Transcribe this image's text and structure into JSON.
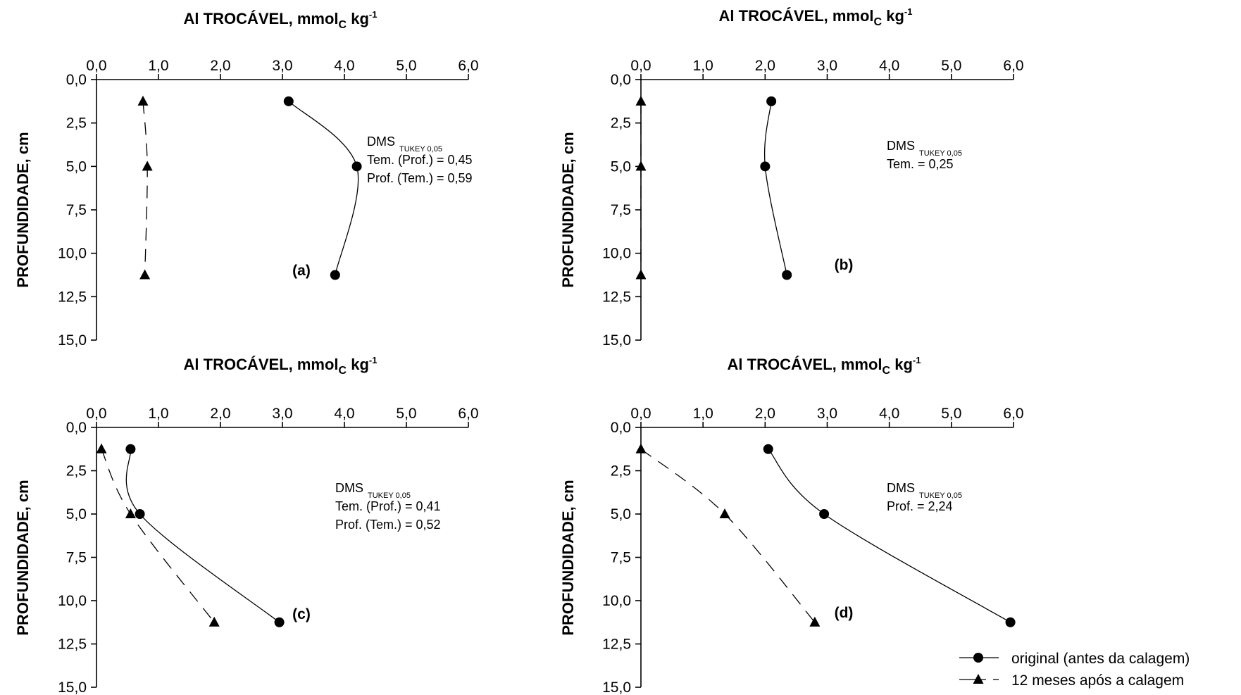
{
  "chart_data": [
    {
      "type": "line",
      "panel_label": "(a)",
      "title": {
        "main": "Al TROCÁVEL, mmol",
        "sub": "C",
        "unit": " kg",
        "sup": "-1"
      },
      "xlabel": "Al TROCÁVEL, mmolC kg-1",
      "ylabel": "PROFUNDIDADE, cm",
      "x_axis_position": "top",
      "y_axis_inverted": true,
      "xlim": [
        0,
        6
      ],
      "ylim": [
        0,
        15
      ],
      "x_ticks": [
        "0,0",
        "1,0",
        "2,0",
        "3,0",
        "4,0",
        "5,0",
        "6,0"
      ],
      "y_ticks": [
        "0,0",
        "2,5",
        "5,0",
        "7,5",
        "10,0",
        "12,5",
        "15,0"
      ],
      "series": [
        {
          "name": "original (antes da calagem)",
          "marker": "circle",
          "line": "solid",
          "x": [
            3.1,
            4.2,
            3.85
          ],
          "y": [
            1.25,
            5.0,
            11.25
          ]
        },
        {
          "name": "12 meses após a calagem",
          "marker": "triangle",
          "line": "dashed",
          "x": [
            0.75,
            0.82,
            0.78
          ],
          "y": [
            1.25,
            5.0,
            11.25
          ]
        }
      ],
      "annotation": {
        "heading": "DMS",
        "heading_sub": "TUKEY 0,05",
        "lines": [
          "Tem. (Prof.) = 0,45",
          "Prof. (Tem.) = 0,59"
        ]
      }
    },
    {
      "type": "line",
      "panel_label": "(b)",
      "title": {
        "main": "Al TROCÁVEL, mmol",
        "sub": "C",
        "unit": " kg",
        "sup": "-1"
      },
      "xlabel": "Al TROCÁVEL, mmolC kg-1",
      "ylabel": "PROFUNDIDADE, cm",
      "x_axis_position": "top",
      "y_axis_inverted": true,
      "xlim": [
        0,
        6
      ],
      "ylim": [
        0,
        15
      ],
      "x_ticks": [
        "0,0",
        "1,0",
        "2,0",
        "3,0",
        "4,0",
        "5,0",
        "6,0"
      ],
      "y_ticks": [
        "0,0",
        "2,5",
        "5,0",
        "7,5",
        "10,0",
        "12,5",
        "15,0"
      ],
      "series": [
        {
          "name": "original (antes da calagem)",
          "marker": "circle",
          "line": "solid",
          "x": [
            2.1,
            2.0,
            2.35
          ],
          "y": [
            1.25,
            5.0,
            11.25
          ]
        },
        {
          "name": "12 meses após a calagem",
          "marker": "triangle",
          "line": "dashed",
          "x": [
            0.0,
            0.0,
            0.0
          ],
          "y": [
            1.25,
            5.0,
            11.25
          ]
        }
      ],
      "annotation": {
        "heading": "DMS",
        "heading_sub": "TUKEY 0,05",
        "lines": [
          "Tem. = 0,25"
        ]
      }
    },
    {
      "type": "line",
      "panel_label": "(c)",
      "title": {
        "main": "Al TROCÁVEL, mmol",
        "sub": "C",
        "unit": " kg",
        "sup": "-1"
      },
      "xlabel": "Al TROCÁVEL, mmolC kg-1",
      "ylabel": "PROFUNDIDADE, cm",
      "x_axis_position": "top",
      "y_axis_inverted": true,
      "xlim": [
        0,
        6
      ],
      "ylim": [
        0,
        15
      ],
      "x_ticks": [
        "0,0",
        "1,0",
        "2,0",
        "3,0",
        "4,0",
        "5,0",
        "6,0"
      ],
      "y_ticks": [
        "0,0",
        "2,5",
        "5,0",
        "7,5",
        "10,0",
        "12,5",
        "15,0"
      ],
      "series": [
        {
          "name": "original (antes da calagem)",
          "marker": "circle",
          "line": "solid",
          "x": [
            0.55,
            0.7,
            2.95
          ],
          "y": [
            1.25,
            5.0,
            11.25
          ]
        },
        {
          "name": "12 meses após a calagem",
          "marker": "triangle",
          "line": "dashed",
          "x": [
            0.08,
            0.55,
            1.9
          ],
          "y": [
            1.25,
            5.0,
            11.25
          ]
        }
      ],
      "annotation": {
        "heading": "DMS",
        "heading_sub": "TUKEY 0,05",
        "lines": [
          "Tem. (Prof.) = 0,41",
          "Prof. (Tem.) = 0,52"
        ]
      }
    },
    {
      "type": "line",
      "panel_label": "(d)",
      "title": {
        "main": "Al TROCÁVEL, mmol",
        "sub": "C",
        "unit": " kg",
        "sup": "-1"
      },
      "xlabel": "Al TROCÁVEL, mmolC kg-1",
      "ylabel": "PROFUNDIDADE, cm",
      "x_axis_position": "top",
      "y_axis_inverted": true,
      "xlim": [
        0,
        6
      ],
      "ylim": [
        0,
        15
      ],
      "x_ticks": [
        "0,0",
        "1,0",
        "2,0",
        "3,0",
        "4,0",
        "5,0",
        "6,0"
      ],
      "y_ticks": [
        "0,0",
        "2,5",
        "5,0",
        "7,5",
        "10,0",
        "12,5",
        "15,0"
      ],
      "series": [
        {
          "name": "original (antes da calagem)",
          "marker": "circle",
          "line": "solid",
          "x": [
            2.05,
            2.95,
            5.95
          ],
          "y": [
            1.25,
            5.0,
            11.25
          ]
        },
        {
          "name": "12 meses após a calagem",
          "marker": "triangle",
          "line": "dashed",
          "x": [
            0.0,
            1.35,
            2.8
          ],
          "y": [
            1.25,
            5.0,
            11.25
          ]
        }
      ],
      "annotation": {
        "heading": "DMS",
        "heading_sub": "TUKEY 0,05",
        "lines": [
          "Prof. = 2,24"
        ]
      }
    }
  ],
  "legend": {
    "placement": "bottom-right",
    "entries": [
      {
        "label": "original (antes da calagem)",
        "marker": "circle",
        "line": "solid"
      },
      {
        "label": "12 meses após a calagem",
        "marker": "triangle",
        "line": "dashed"
      }
    ]
  },
  "colors": {
    "ink": "#000000",
    "background": "#ffffff"
  }
}
